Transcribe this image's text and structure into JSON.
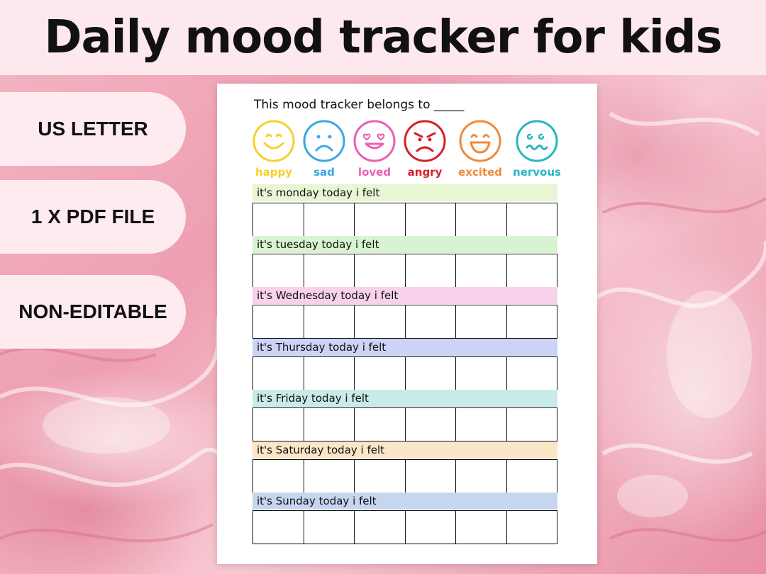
{
  "header": {
    "title": "Daily mood tracker for kids"
  },
  "features": [
    "US LETTER",
    "1 X PDF FILE",
    "NON-EDITABLE"
  ],
  "sheet": {
    "belongs_text": "This mood tracker belongs to _____",
    "moods": [
      {
        "label": "happy",
        "color": "#f5d12c",
        "icon": "happy-face-icon"
      },
      {
        "label": "sad",
        "color": "#3aa7e3",
        "icon": "sad-face-icon"
      },
      {
        "label": "loved",
        "color": "#ea5fb3",
        "icon": "loved-face-icon"
      },
      {
        "label": "angry",
        "color": "#d6202a",
        "icon": "angry-face-icon"
      },
      {
        "label": "excited",
        "color": "#f08a3a",
        "icon": "excited-face-icon"
      },
      {
        "label": "nervous",
        "color": "#28b6bf",
        "icon": "nervous-face-icon"
      }
    ],
    "days": [
      {
        "label": "it's monday today i felt",
        "color": "#e9f5d3"
      },
      {
        "label": "it's tuesday today i felt",
        "color": "#d8f3d2"
      },
      {
        "label": "it's Wednesday today i felt",
        "color": "#f8d2ea"
      },
      {
        "label": "it's Thursday today i felt",
        "color": "#cdd3f6"
      },
      {
        "label": "it's Friday today i felt",
        "color": "#c9ebe7"
      },
      {
        "label": "it's Saturday today i felt",
        "color": "#fbe6c8"
      },
      {
        "label": "it's Sunday today i felt",
        "color": "#c6d6ee"
      }
    ]
  }
}
